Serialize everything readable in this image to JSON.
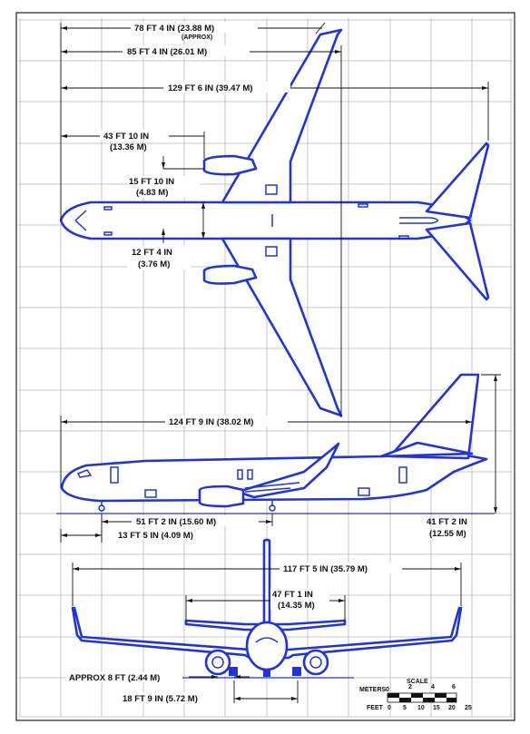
{
  "dimensions": {
    "span_78": "78 FT 4 IN (23.88 M)",
    "approx": "(APPROX)",
    "span_85": "85 FT 4 IN (26.01 M)",
    "length_129": "129 FT 6 IN (39.47 M)",
    "d43": "43 FT 10 IN",
    "d43m": "(13.36 M)",
    "d15": "15 FT 10 IN",
    "d15m": "(4.83 M)",
    "d12": "12 FT 4 IN",
    "d12m": "(3.76 M)",
    "fuse_124": "124 FT 9 IN (38.02 M)",
    "d51": "51 FT 2 IN (15.60 M)",
    "d13": "13 FT 5 IN (4.09 M)",
    "h41": "41 FT 2 IN",
    "h41m": "(12.55 M)",
    "span_117": "117 FT 5 IN (35.79 M)",
    "stab_47": "47 FT 1 IN",
    "stab_47m": "(14.35 M)",
    "approx8": "APPROX 8 FT (2.44 M)",
    "track_18": "18 FT 9 IN (5.72 M)"
  },
  "scale": {
    "title": "SCALE",
    "meters_label": "METERS",
    "meters_ticks": [
      "0",
      "2",
      "4",
      "6"
    ],
    "feet_label": "FEET",
    "feet_ticks": [
      "0",
      "5",
      "10",
      "15",
      "20",
      "25"
    ]
  },
  "colors": {
    "aircraft": "#2233dd",
    "grid": "#b9b9b9",
    "text": "#111111"
  }
}
